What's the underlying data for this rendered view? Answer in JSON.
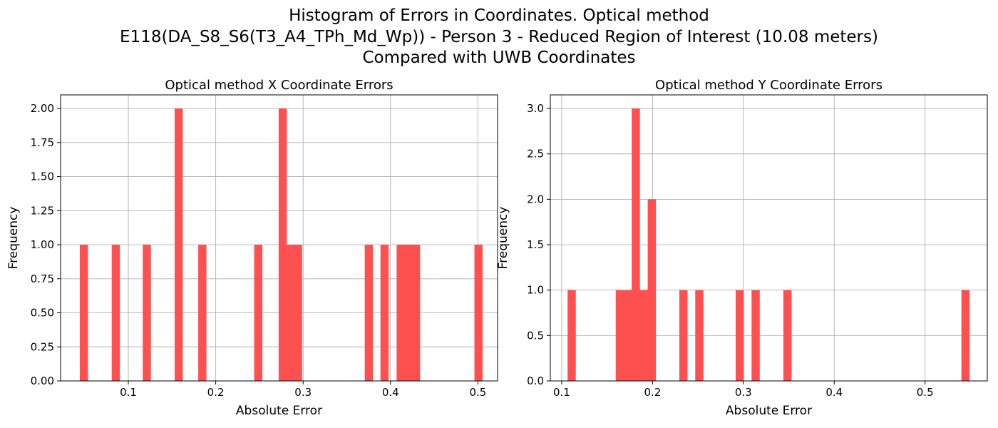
{
  "figure": {
    "suptitle_lines": [
      "Histogram of Errors in Coordinates. Optical method",
      "E118(DA_S8_S6(T3_A4_TPh_Md_Wp)) - Person 3 - Reduced Region of Interest (10.08 meters)",
      "Compared with UWB Coordinates"
    ],
    "bar_color": "#ff5050",
    "grid_color": "#b0b0b0"
  },
  "chart_data": [
    {
      "type": "bar",
      "title": "Optical method X Coordinate Errors",
      "xlabel": "Absolute Error",
      "ylabel": "Frequency",
      "xlim": [
        0.0225,
        0.5225
      ],
      "ylim": [
        0,
        2.1
      ],
      "grid": true,
      "xticks": [
        0.1,
        0.2,
        0.3,
        0.4,
        0.5
      ],
      "xtick_labels": [
        "0.1",
        "0.2",
        "0.3",
        "0.4",
        "0.5"
      ],
      "yticks": [
        0,
        0.25,
        0.5,
        0.75,
        1.0,
        1.25,
        1.5,
        1.75,
        2.0
      ],
      "ytick_labels": [
        "0.00",
        "0.25",
        "0.50",
        "0.75",
        "1.00",
        "1.25",
        "1.50",
        "1.75",
        "2.00"
      ],
      "bin_width": 0.0091,
      "bins": [
        {
          "x": 0.0445,
          "count": 1
        },
        {
          "x": 0.081,
          "count": 1
        },
        {
          "x": 0.1165,
          "count": 1
        },
        {
          "x": 0.153,
          "count": 2
        },
        {
          "x": 0.18,
          "count": 1
        },
        {
          "x": 0.244,
          "count": 1
        },
        {
          "x": 0.272,
          "count": 2
        },
        {
          "x": 0.2805,
          "count": 1
        },
        {
          "x": 0.2895,
          "count": 1
        },
        {
          "x": 0.3705,
          "count": 1
        },
        {
          "x": 0.3885,
          "count": 1
        },
        {
          "x": 0.407,
          "count": 1
        },
        {
          "x": 0.4155,
          "count": 1
        },
        {
          "x": 0.4245,
          "count": 1
        },
        {
          "x": 0.496,
          "count": 1
        }
      ]
    },
    {
      "type": "bar",
      "title": "Optical method Y Coordinate Errors",
      "xlabel": "Absolute Error",
      "ylabel": "Frequency",
      "xlim": [
        0.0875,
        0.5685
      ],
      "ylim": [
        0,
        3.15
      ],
      "grid": true,
      "xticks": [
        0.1,
        0.2,
        0.3,
        0.4,
        0.5
      ],
      "xtick_labels": [
        "0.1",
        "0.2",
        "0.3",
        "0.4",
        "0.5"
      ],
      "yticks": [
        0,
        0.5,
        1.0,
        1.5,
        2.0,
        2.5,
        3.0
      ],
      "ytick_labels": [
        "0.0",
        "0.5",
        "1.0",
        "1.5",
        "2.0",
        "2.5",
        "3.0"
      ],
      "bin_width": 0.0088,
      "bins": [
        {
          "x": 0.1065,
          "count": 1
        },
        {
          "x": 0.1595,
          "count": 1
        },
        {
          "x": 0.1683,
          "count": 1
        },
        {
          "x": 0.1771,
          "count": 3
        },
        {
          "x": 0.1859,
          "count": 1
        },
        {
          "x": 0.1947,
          "count": 2
        },
        {
          "x": 0.2295,
          "count": 1
        },
        {
          "x": 0.247,
          "count": 1
        },
        {
          "x": 0.2915,
          "count": 1
        },
        {
          "x": 0.309,
          "count": 1
        },
        {
          "x": 0.344,
          "count": 1
        },
        {
          "x": 0.54,
          "count": 1
        }
      ]
    }
  ]
}
